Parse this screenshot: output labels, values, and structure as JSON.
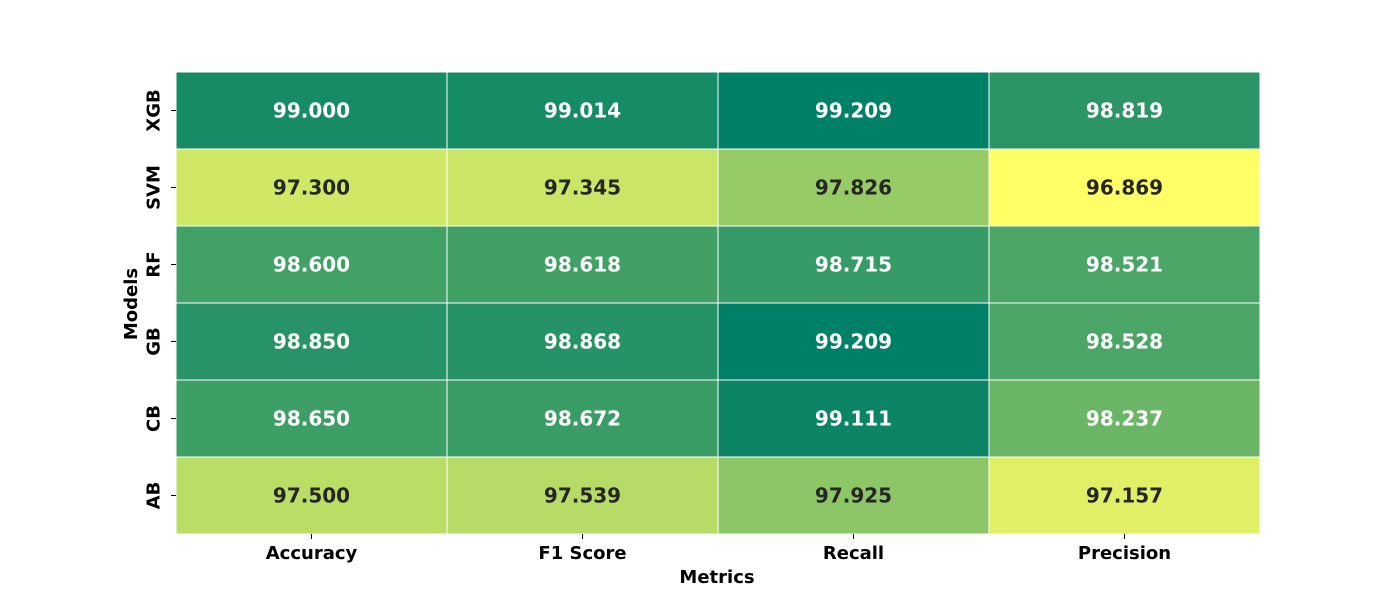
{
  "chart_data": {
    "type": "heatmap",
    "xlabel": "Metrics",
    "ylabel": "Models",
    "x_categories": [
      "Accuracy",
      "F1 Score",
      "Recall",
      "Precision"
    ],
    "y_categories": [
      "XGB",
      "SVM",
      "RF",
      "GB",
      "CB",
      "AB"
    ],
    "values": [
      [
        99.0,
        99.014,
        99.209,
        98.819
      ],
      [
        97.3,
        97.345,
        97.826,
        96.869
      ],
      [
        98.6,
        98.618,
        98.715,
        98.521
      ],
      [
        98.85,
        98.868,
        99.209,
        98.528
      ],
      [
        98.65,
        98.672,
        99.111,
        98.237
      ],
      [
        97.5,
        97.539,
        97.925,
        97.157
      ]
    ],
    "value_format_decimals": 3,
    "colormap": "summer_r",
    "colormap_colors": [
      "#008066",
      "#ffff66"
    ],
    "annotation_colors": {
      "dark_cell_text": "#ffffff",
      "light_cell_text": "#262626"
    },
    "colorbar": false,
    "grid_line_color": "#ffffff"
  }
}
